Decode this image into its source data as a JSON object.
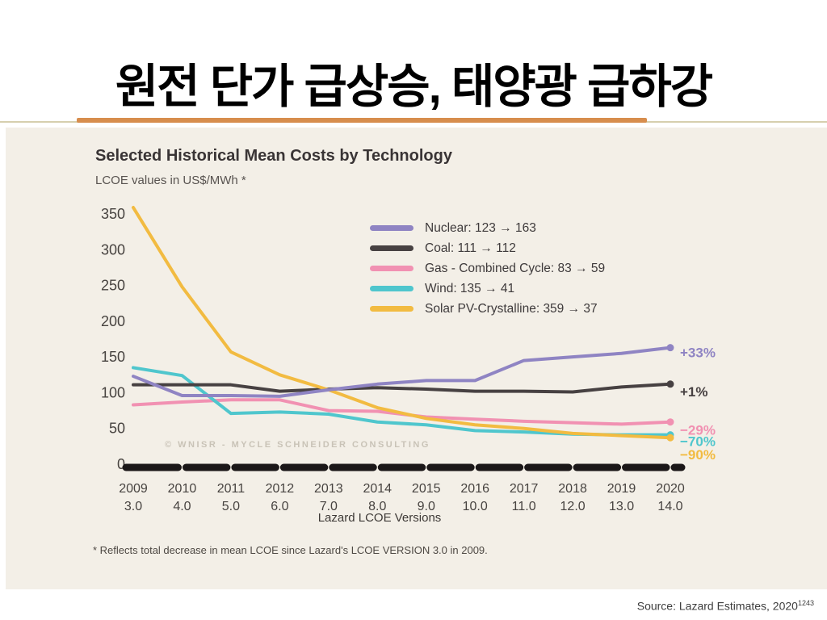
{
  "slide": {
    "title": "원전 단가 급상승, 태양광 급하강",
    "source": "Source: Lazard Estimates, 2020",
    "source_superscript": "1243"
  },
  "colors": {
    "accent_orange": "#d78d4d",
    "divider_khaki": "#d6cfae",
    "panel_background": "#f3efe7",
    "axis_bar_black": "#1b1718",
    "watermark_gray": "#c9c3b7"
  },
  "chart_data": {
    "type": "line",
    "title": "Selected Historical Mean Costs by Technology",
    "subtitle": "LCOE values in US$/MWh *",
    "xlabel": "Lazard LCOE Versions",
    "ylabel": "",
    "ylim": [
      0,
      350
    ],
    "yticks": [
      0,
      50,
      100,
      150,
      200,
      250,
      300,
      350
    ],
    "grid": false,
    "legend_position": "upper center-right",
    "x_years": [
      "2009",
      "2010",
      "2011",
      "2012",
      "2013",
      "2014",
      "2015",
      "2016",
      "2017",
      "2018",
      "2019",
      "2020"
    ],
    "x_versions": [
      "3.0",
      "4.0",
      "5.0",
      "6.0",
      "7.0",
      "8.0",
      "9.0",
      "10.0",
      "11.0",
      "12.0",
      "13.0",
      "14.0"
    ],
    "series": [
      {
        "id": "nuclear",
        "name": "Nuclear",
        "color": "#8f84c3",
        "legend_label": "Nuclear: 123 → 163",
        "end_label": "+33%",
        "start_value": 123,
        "end_value": 163,
        "values": [
          123,
          96,
          96,
          95,
          104,
          112,
          117,
          117,
          145,
          150,
          155,
          163
        ]
      },
      {
        "id": "coal",
        "name": "Coal",
        "color": "#474142",
        "legend_label": "Coal: 111 → 112",
        "end_label": "+1%",
        "start_value": 111,
        "end_value": 112,
        "values": [
          111,
          111,
          111,
          102,
          105,
          107,
          105,
          102,
          102,
          101,
          108,
          112
        ]
      },
      {
        "id": "gas",
        "name": "Gas - Combined Cycle",
        "color": "#f191b2",
        "legend_label": "Gas - Combined Cycle: 83 → 59",
        "end_label": "−29%",
        "start_value": 83,
        "end_value": 59,
        "values": [
          83,
          87,
          90,
          90,
          75,
          74,
          66,
          63,
          60,
          58,
          56,
          59
        ]
      },
      {
        "id": "wind",
        "name": "Wind",
        "color": "#4fc6cd",
        "legend_label": "Wind: 135 → 41",
        "end_label": "−70%",
        "start_value": 135,
        "end_value": 41,
        "values": [
          135,
          124,
          71,
          73,
          70,
          59,
          55,
          47,
          45,
          42,
          41,
          41
        ]
      },
      {
        "id": "solar",
        "name": "Solar PV-Crystalline",
        "color": "#f2bb41",
        "legend_label": "Solar PV-Crystalline: 359 → 37",
        "end_label": "−90%",
        "start_value": 359,
        "end_value": 37,
        "values": [
          359,
          248,
          157,
          125,
          104,
          79,
          64,
          55,
          50,
          43,
          40,
          37
        ]
      }
    ],
    "watermark": "© WNISR - MYCLE SCHNEIDER CONSULTING",
    "footnote": "* Reflects total decrease in mean LCOE since Lazard's LCOE VERSION 3.0 in 2009."
  }
}
